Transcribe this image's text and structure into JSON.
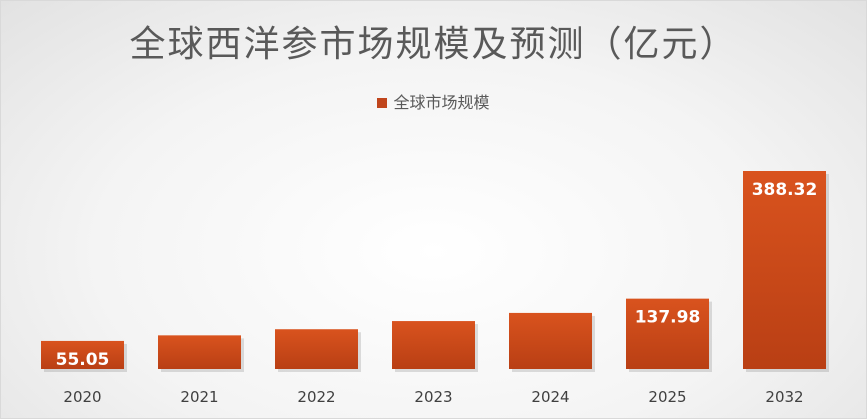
{
  "chart_data": {
    "type": "bar",
    "title": "全球西洋参市场规模及预测（亿元）",
    "categories": [
      "2020",
      "2021",
      "2022",
      "2023",
      "2024",
      "2025",
      "2032"
    ],
    "series": [
      {
        "name": "全球市场规模",
        "values": [
          55.05,
          66.0,
          78.0,
          94.0,
          110.0,
          137.98,
          388.32
        ],
        "data_labels": [
          "55.05",
          null,
          null,
          null,
          null,
          "137.98",
          "388.32"
        ]
      }
    ],
    "color": "#C0451C",
    "xlabel": "",
    "ylabel": "",
    "ylim": [
      0,
      420
    ],
    "grid": false,
    "legend_position": "top"
  }
}
